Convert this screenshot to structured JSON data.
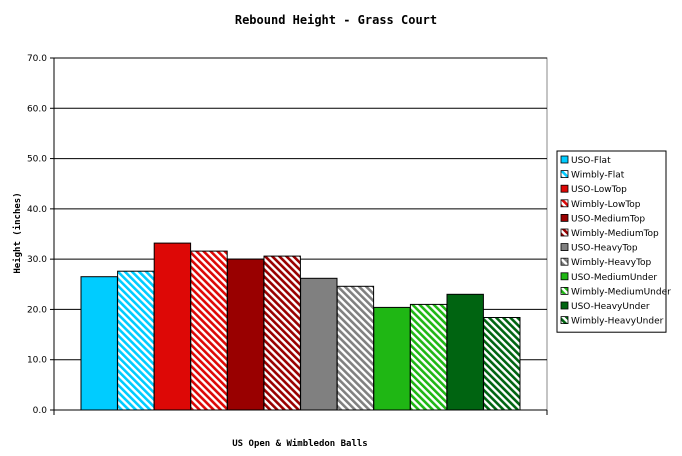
{
  "chart_data": {
    "type": "bar",
    "title": "Rebound Height - Grass Court",
    "xlabel": "US Open & Wimbledon Balls",
    "ylabel": "Height (inches)",
    "ylim": [
      0,
      70
    ],
    "yticks": [
      "0.0",
      "10.0",
      "20.0",
      "30.0",
      "40.0",
      "50.0",
      "60.0",
      "70.0"
    ],
    "grid": true,
    "legend_position": "right",
    "series": [
      {
        "name": "USO-Flat",
        "value": 26.5,
        "color": "#00ccff",
        "pattern": "solid"
      },
      {
        "name": "Wimbly-Flat",
        "value": 27.6,
        "color": "#00ccff",
        "pattern": "hatched"
      },
      {
        "name": "USO-LowTop",
        "value": 33.2,
        "color": "#dd0806",
        "pattern": "solid"
      },
      {
        "name": "Wimbly-LowTop",
        "value": 31.6,
        "color": "#dd0806",
        "pattern": "hatched"
      },
      {
        "name": "USO-MediumTop",
        "value": 30.0,
        "color": "#990000",
        "pattern": "solid"
      },
      {
        "name": "Wimbly-MediumTop",
        "value": 30.6,
        "color": "#990000",
        "pattern": "hatched"
      },
      {
        "name": "USO-HeavyTop",
        "value": 26.2,
        "color": "#808080",
        "pattern": "solid"
      },
      {
        "name": "Wimbly-HeavyTop",
        "value": 24.6,
        "color": "#808080",
        "pattern": "hatched"
      },
      {
        "name": "USO-MediumUnder",
        "value": 20.4,
        "color": "#1fb714",
        "pattern": "solid"
      },
      {
        "name": "Wimbly-MediumUnder",
        "value": 21.0,
        "color": "#1fb714",
        "pattern": "hatched"
      },
      {
        "name": "USO-HeavyUnder",
        "value": 23.0,
        "color": "#006411",
        "pattern": "solid"
      },
      {
        "name": "Wimbly-HeavyUnder",
        "value": 18.4,
        "color": "#006411",
        "pattern": "hatched"
      }
    ]
  }
}
